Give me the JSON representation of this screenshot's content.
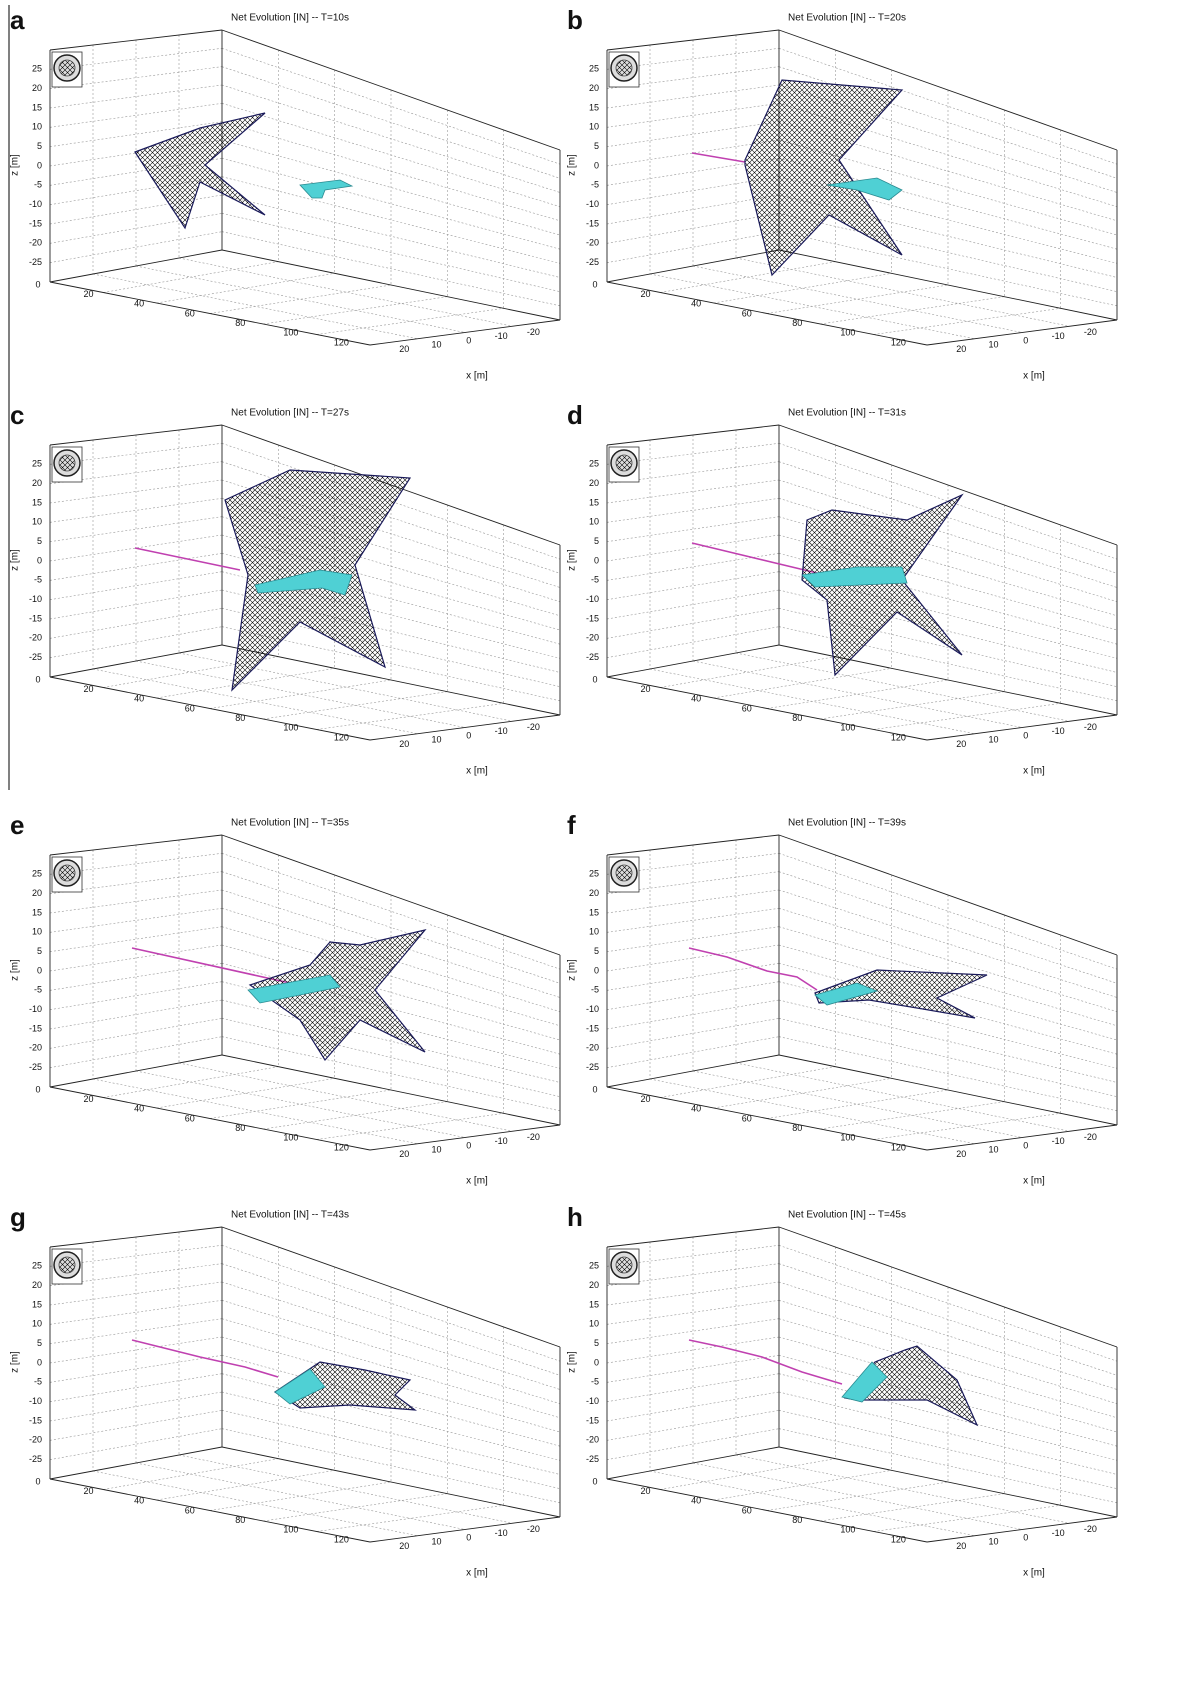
{
  "panels": [
    {
      "letter": "a",
      "title": "Net Evolution [IN] -- T=10s"
    },
    {
      "letter": "b",
      "title": "Net Evolution [IN] -- T=20s"
    },
    {
      "letter": "c",
      "title": "Net Evolution [IN] -- T=27s"
    },
    {
      "letter": "d",
      "title": "Net Evolution [IN] -- T=31s"
    },
    {
      "letter": "e",
      "title": "Net Evolution [IN] -- T=35s"
    },
    {
      "letter": "f",
      "title": "Net Evolution [IN] -- T=39s"
    },
    {
      "letter": "g",
      "title": "Net Evolution [IN] -- T=43s"
    },
    {
      "letter": "h",
      "title": "Net Evolution [IN] -- T=45s"
    }
  ],
  "axes": {
    "z_label": "z [m]",
    "x_label": "x [m]",
    "z_ticks": [
      "25",
      "20",
      "15",
      "10",
      "5",
      "0",
      "-5",
      "-10",
      "-15",
      "-20",
      "-25"
    ],
    "y_ticks": [
      "0",
      "20",
      "40",
      "60",
      "80",
      "100",
      "120"
    ],
    "x_ticks": [
      "20",
      "10",
      "0",
      "-10",
      "-20"
    ]
  }
}
